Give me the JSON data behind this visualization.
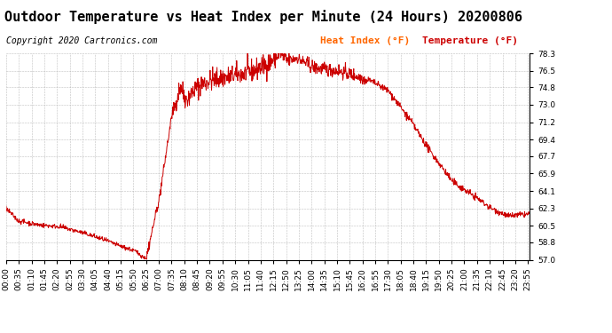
{
  "title": "Outdoor Temperature vs Heat Index per Minute (24 Hours) 20200806",
  "copyright": "Copyright 2020 Cartronics.com",
  "legend_heat": "Heat Index (°F)",
  "legend_temp": "Temperature (°F)",
  "heat_color": "#ff6600",
  "line_color": "#cc0000",
  "background_color": "#ffffff",
  "plot_bg_color": "#ffffff",
  "grid_color": "#b0b0b0",
  "ylim": [
    57.0,
    78.3
  ],
  "yticks": [
    57.0,
    58.8,
    60.5,
    62.3,
    64.1,
    65.9,
    67.7,
    69.4,
    71.2,
    73.0,
    74.8,
    76.5,
    78.3
  ],
  "title_fontsize": 11,
  "copyright_fontsize": 7,
  "legend_fontsize": 8,
  "tick_fontsize": 6.5
}
